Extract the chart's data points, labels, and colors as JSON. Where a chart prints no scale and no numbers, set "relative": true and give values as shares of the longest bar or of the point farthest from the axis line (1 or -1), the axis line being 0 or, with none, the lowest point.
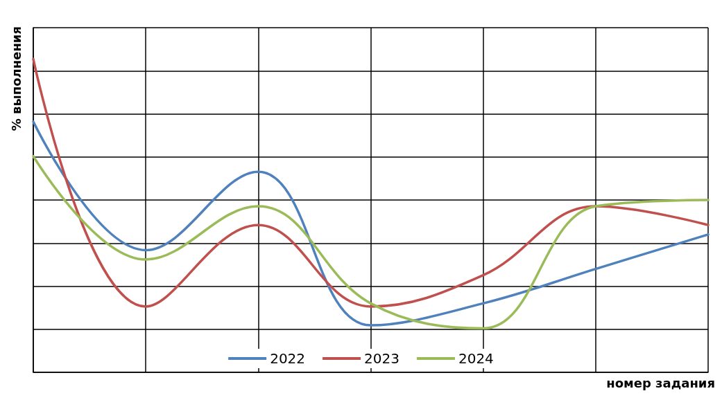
{
  "chart_data": {
    "type": "line",
    "relative": true,
    "xlabel": "номер задания",
    "ylabel": "% выполнения",
    "categories": [
      null,
      null,
      null,
      null,
      null,
      null,
      null
    ],
    "grid": true,
    "legend": "bottom",
    "marker": "none",
    "line_style": "solid",
    "series": [
      {
        "name": "2022",
        "color": "#4f81bd",
        "values": [
          0.8,
          0.39,
          0.64,
          0.15,
          0.22,
          0.33,
          0.44
        ]
      },
      {
        "name": "2023",
        "color": "#c0504d",
        "values": [
          1,
          0.21,
          0.47,
          0.21,
          0.31,
          0.53,
          0.47
        ]
      },
      {
        "name": "2024",
        "color": "#9bbb59",
        "values": [
          0.69,
          0.36,
          0.53,
          0.22,
          0.14,
          0.53,
          0.55
        ]
      }
    ]
  }
}
